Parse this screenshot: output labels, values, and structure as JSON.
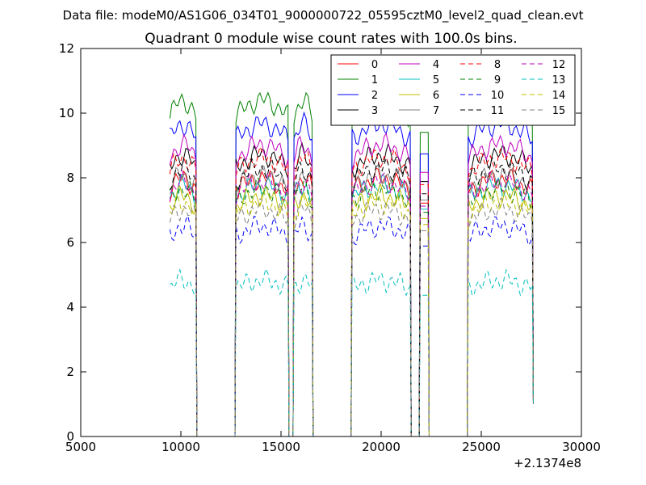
{
  "figure": {
    "suptitle": "Data file: modeM0/AS1G06_034T01_9000000722_05595cztM0_level2_quad_clean.evt"
  },
  "chart_data": {
    "type": "line",
    "title": "Quadrant 0 module wise count rates with 100.0s bins.",
    "xlabel": "",
    "ylabel": "",
    "xlim": [
      5000,
      30000
    ],
    "ylim": [
      0,
      12
    ],
    "x_offset_label": "+2.1374e8",
    "xticks": [
      "5000",
      "10000",
      "15000",
      "20000",
      "25000",
      "30000"
    ],
    "yticks": [
      "0",
      "2",
      "4",
      "6",
      "8",
      "10",
      "12"
    ],
    "grid": false,
    "legend_position": "top-right",
    "legend_columns": 4,
    "segments": [
      {
        "start": 9450,
        "end": 10750
      },
      {
        "start": 12750,
        "end": 15350
      },
      {
        "start": 15650,
        "end": 16550
      },
      {
        "start": 18550,
        "end": 21450
      },
      {
        "start": 21950,
        "end": 22350
      },
      {
        "start": 24350,
        "end": 27550
      }
    ],
    "series": [
      {
        "name": "0",
        "color": "#ff0000",
        "dash": "solid",
        "level": 7.6
      },
      {
        "name": "1",
        "color": "#008000",
        "dash": "solid",
        "level": 9.9
      },
      {
        "name": "2",
        "color": "#0000ff",
        "dash": "solid",
        "level": 9.2
      },
      {
        "name": "3",
        "color": "#000000",
        "dash": "solid",
        "level": 8.3
      },
      {
        "name": "4",
        "color": "#bf00bf",
        "dash": "solid",
        "level": 8.6
      },
      {
        "name": "5",
        "color": "#00bfbf",
        "dash": "solid",
        "level": 7.4
      },
      {
        "name": "6",
        "color": "#bfbf00",
        "dash": "solid",
        "level": 7.1
      },
      {
        "name": "7",
        "color": "#808080",
        "dash": "solid",
        "level": 7.7
      },
      {
        "name": "8",
        "color": "#ff0000",
        "dash": "dashed",
        "level": 8.2
      },
      {
        "name": "9",
        "color": "#008000",
        "dash": "dashed",
        "level": 7.3
      },
      {
        "name": "10",
        "color": "#0000ff",
        "dash": "dashed",
        "level": 6.2
      },
      {
        "name": "11",
        "color": "#000000",
        "dash": "dashed",
        "level": 7.9
      },
      {
        "name": "12",
        "color": "#bf00bf",
        "dash": "dashed",
        "level": 7.5
      },
      {
        "name": "13",
        "color": "#00bfbf",
        "dash": "dashed",
        "level": 4.6
      },
      {
        "name": "14",
        "color": "#bfbf00",
        "dash": "dashed",
        "level": 6.9
      },
      {
        "name": "15",
        "color": "#808080",
        "dash": "dashed",
        "level": 6.7
      }
    ]
  }
}
